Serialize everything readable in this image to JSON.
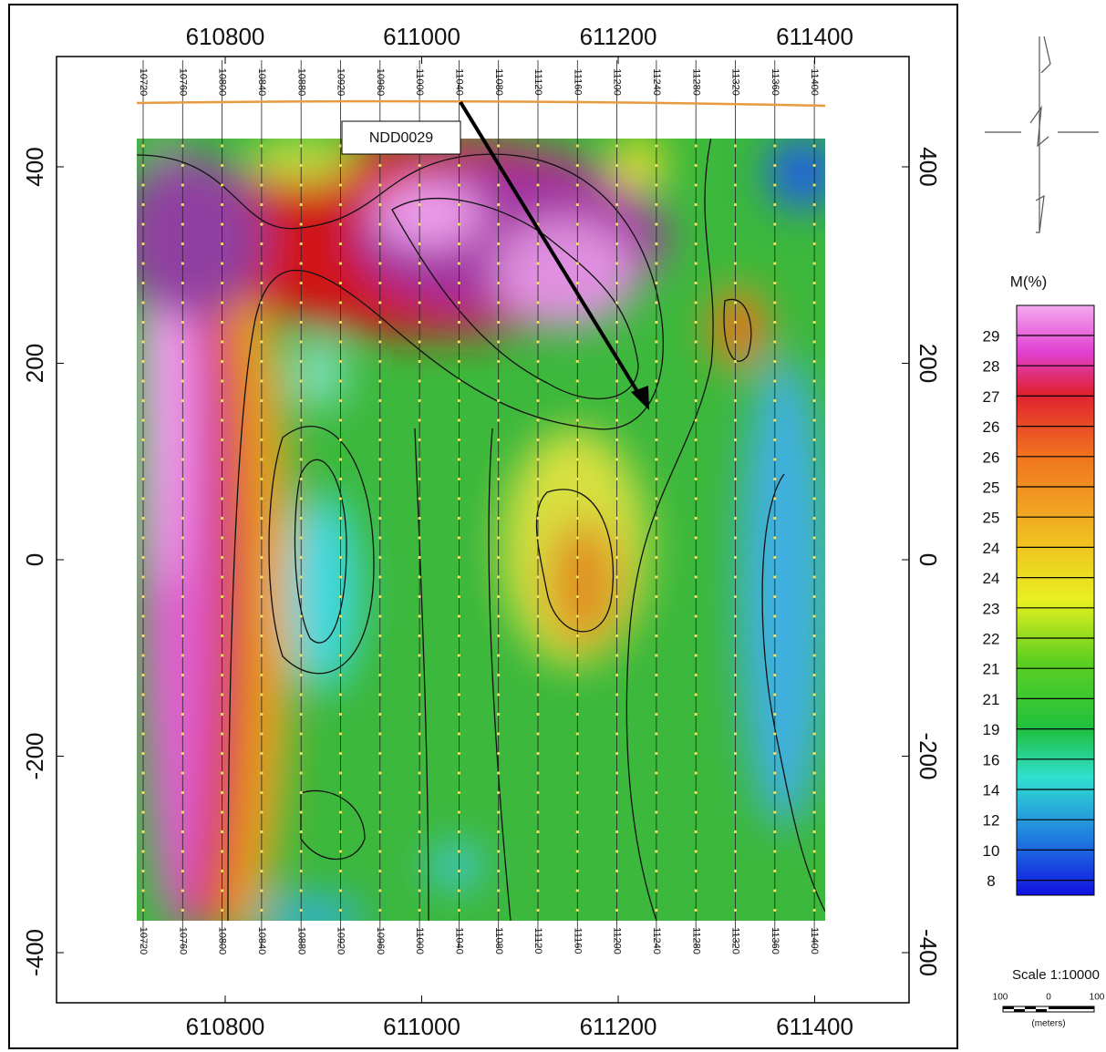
{
  "map": {
    "x_ticks": [
      610800,
      611000,
      611200,
      611400
    ],
    "y_ticks": [
      400,
      200,
      0,
      -200,
      -400
    ],
    "survey_lines": [
      10720,
      10760,
      10800,
      10840,
      10880,
      10920,
      10960,
      11000,
      11040,
      11080,
      11120,
      11160,
      11200,
      11240,
      11280,
      11320,
      11360,
      11400
    ],
    "callout": "NDD0029",
    "legend": {
      "title": "M(%)",
      "labels": [
        29,
        28,
        27,
        26,
        26,
        25,
        25,
        24,
        24,
        23,
        22,
        21,
        21,
        19,
        16,
        14,
        12,
        10,
        8
      ]
    },
    "scale": {
      "title": "Scale 1:10000",
      "ticks": [
        "100",
        "0",
        "100"
      ],
      "unit": "(meters)"
    }
  }
}
